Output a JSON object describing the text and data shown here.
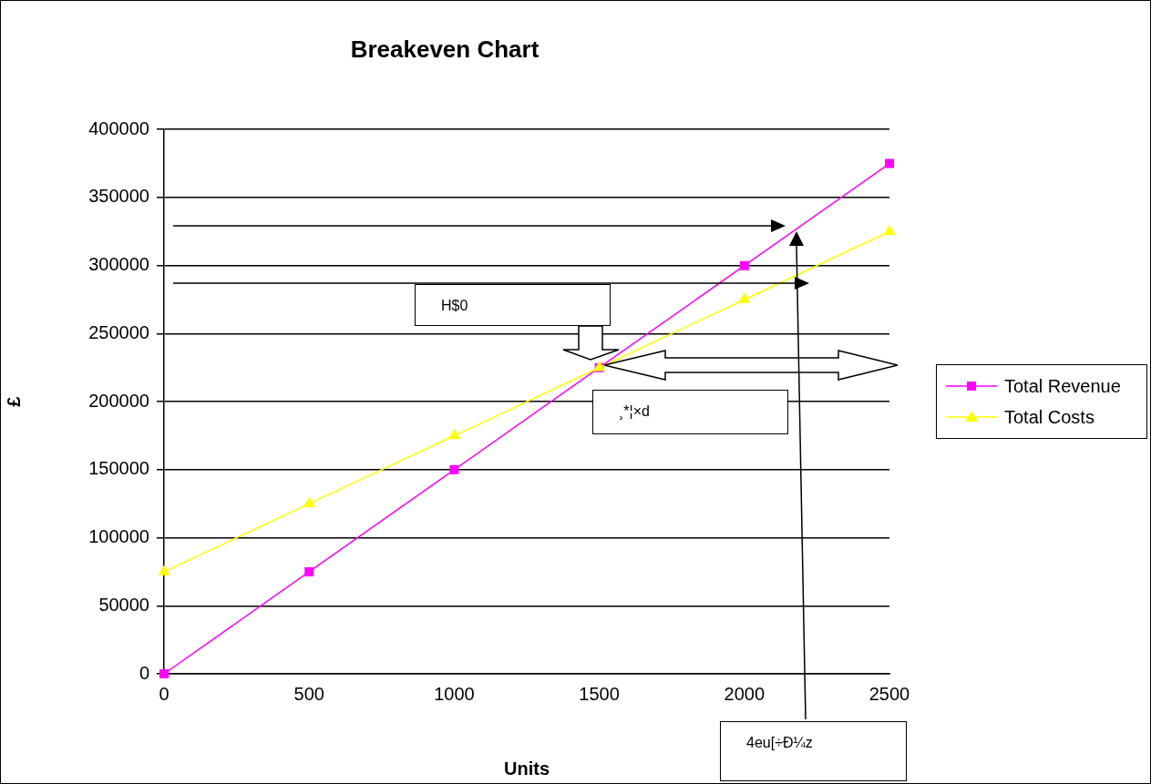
{
  "chart_data": {
    "type": "line",
    "title": "Breakeven Chart",
    "xlabel": "Units",
    "ylabel": "£",
    "x": [
      0,
      500,
      1000,
      1500,
      2000,
      2500
    ],
    "series": [
      {
        "name": "Total Revenue",
        "color": "#ff00ff",
        "marker": "square",
        "values": [
          0,
          75000,
          150000,
          225000,
          300000,
          375000
        ]
      },
      {
        "name": "Total Costs",
        "color": "#ffff00",
        "marker": "triangle",
        "values": [
          75000,
          125000,
          175000,
          225000,
          275000,
          325000
        ]
      }
    ],
    "xlim": [
      0,
      2500
    ],
    "xticks": [
      0,
      500,
      1000,
      1500,
      2000,
      2500
    ],
    "ylim": [
      0,
      400000
    ],
    "yticks": [
      0,
      50000,
      100000,
      150000,
      200000,
      250000,
      300000,
      350000,
      400000
    ],
    "grid": "y",
    "legend": "right",
    "line_style": "solid",
    "annotations": [
      "H$0",
      "¸*¦×d",
      "4eu[÷Ð¼z"
    ]
  }
}
